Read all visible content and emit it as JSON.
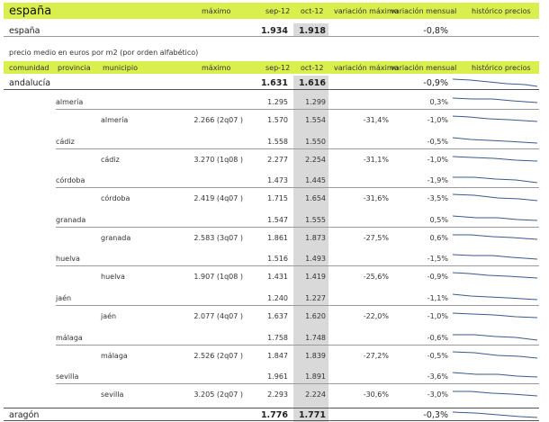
{
  "top": {
    "title": "españa",
    "headers": {
      "maximo": "máximo",
      "sep": "sep-12",
      "oct": "oct-12",
      "var_max": "variación máximo",
      "var_mens": "variación mensual",
      "hist": "histórico precios"
    },
    "row": {
      "name": "españa",
      "sep": "1.934",
      "oct": "1.918",
      "var_mens": "-0,8%"
    }
  },
  "note": "precio medio en euros por m2 (por orden alfabético)",
  "table": {
    "headers": {
      "comunidad": "comunidad",
      "provincia": "provincia",
      "municipio": "municipio",
      "maximo": "máximo",
      "sep": "sep-12",
      "oct": "oct-12",
      "var_max": "variación máximo",
      "var_mens": "variación mensual",
      "hist": "histórico precios"
    },
    "andalucia": {
      "name": "andalucía",
      "sep": "1.631",
      "oct": "1.616",
      "var_mens": "-0,9%"
    },
    "provinces": [
      {
        "name": "almería",
        "prov_sep": "1.295",
        "prov_oct": "1.299",
        "prov_var": "0,3%",
        "prov_var_neg": false,
        "muni": "almería",
        "maximo": "2.266 (2q07 )",
        "sep": "1.570",
        "oct": "1.554",
        "var_max": "-31,4%",
        "var_mens": "-1,0%"
      },
      {
        "name": "cádiz",
        "prov_sep": "1.558",
        "prov_oct": "1.550",
        "prov_var": "-0,5%",
        "prov_var_neg": true,
        "muni": "cádiz",
        "maximo": "3.270 (1q08 )",
        "sep": "2.277",
        "oct": "2.254",
        "var_max": "-31,1%",
        "var_mens": "-1,0%"
      },
      {
        "name": "córdoba",
        "prov_sep": "1.473",
        "prov_oct": "1.445",
        "prov_var": "-1,9%",
        "prov_var_neg": true,
        "muni": "córdoba",
        "maximo": "2.419 (4q07 )",
        "sep": "1.715",
        "oct": "1.654",
        "var_max": "-31,6%",
        "var_mens": "-3,5%"
      },
      {
        "name": "granada",
        "prov_sep": "1.547",
        "prov_oct": "1.555",
        "prov_var": "0,5%",
        "prov_var_neg": false,
        "muni": "granada",
        "maximo": "2.583 (3q07 )",
        "sep": "1.861",
        "oct": "1.873",
        "var_max": "-27,5%",
        "var_mens": "0,6%"
      },
      {
        "name": "huelva",
        "prov_sep": "1.516",
        "prov_oct": "1.493",
        "prov_var": "-1,5%",
        "prov_var_neg": true,
        "muni": "huelva",
        "maximo": "1.907 (1q08 )",
        "sep": "1.431",
        "oct": "1.419",
        "var_max": "-25,6%",
        "var_mens": "-0,9%"
      },
      {
        "name": "jaén",
        "prov_sep": "1.240",
        "prov_oct": "1.227",
        "prov_var": "-1,1%",
        "prov_var_neg": true,
        "muni": "jaén",
        "maximo": "2.077 (4q07 )",
        "sep": "1.637",
        "oct": "1.620",
        "var_max": "-22,0%",
        "var_mens": "-1,0%"
      },
      {
        "name": "málaga",
        "prov_sep": "1.758",
        "prov_oct": "1.748",
        "prov_var": "-0,6%",
        "prov_var_neg": true,
        "muni": "málaga",
        "maximo": "2.526 (2q07 )",
        "sep": "1.847",
        "oct": "1.839",
        "var_max": "-27,2%",
        "var_mens": "-0,5%"
      },
      {
        "name": "sevilla",
        "prov_sep": "1.961",
        "prov_oct": "1.891",
        "prov_var": "-3,6%",
        "prov_var_neg": true,
        "muni": "sevilla",
        "maximo": "3.205 (2q07 )",
        "sep": "2.293",
        "oct": "2.224",
        "var_max": "-30,6%",
        "var_mens": "-3,0%"
      }
    ],
    "aragon": {
      "name": "aragón",
      "sep": "1.776",
      "oct": "1.771",
      "var_mens": "-0,3%"
    }
  },
  "colors": {
    "header_bar": "#d9ef4e",
    "highlight_column": "#d9d9d9",
    "negative": "#e02020",
    "sparkline": "#3a5a8c"
  }
}
